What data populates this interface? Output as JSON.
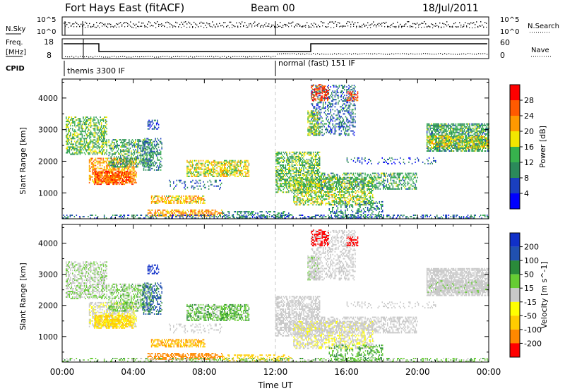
{
  "header": {
    "title": "Fort Hays East (fitACF)",
    "beam": "Beam 00",
    "date": "18/Jul/2011"
  },
  "noise_panel": {
    "left_label": "N.Sky",
    "right_label": "N.Search",
    "tick_top": "10^5",
    "tick_bottom": "10^0"
  },
  "freq_panel": {
    "left_label_1": "Freq.",
    "left_label_2": "[MHz]",
    "left_tick_top": "18",
    "left_tick_bottom": "8",
    "right_label": "Nave",
    "right_tick_top": "60",
    "right_tick_bottom": "0"
  },
  "cpid": {
    "label": "CPID",
    "modes": [
      {
        "name": "themis 3300 IF",
        "start_hour": 0
      },
      {
        "name": "normal (fast) 151 IF",
        "start_hour": 12
      }
    ]
  },
  "colors": {
    "power_scale": [
      "#0000ff",
      "#1a3fbf",
      "#2b8a5a",
      "#37b24d",
      "#f2e600",
      "#ff9900",
      "#ff5a00",
      "#ff0000"
    ],
    "velocity_scale": [
      "#1030c8",
      "#2050b0",
      "#2a8a3a",
      "#66cc33",
      "#c8c8c8",
      "#ffff00",
      "#ffcc00",
      "#ff8800",
      "#ff0000"
    ],
    "ground_scatter": "#c8c8c8"
  },
  "chart_data": [
    {
      "type": "heatmap",
      "name": "power",
      "ylabel": "Slant Range [km]",
      "ylim": [
        180,
        4600
      ],
      "xlim_hours": [
        0,
        24
      ],
      "yticks": [
        1000,
        2000,
        3000,
        4000
      ],
      "colorbar_label": "Power [dB]",
      "colorbar_ticks": [
        "4",
        "8",
        "12",
        "16",
        "20",
        "24",
        "28"
      ],
      "colorbar_range": [
        0,
        32
      ]
    },
    {
      "type": "heatmap",
      "name": "velocity",
      "xlabel": "Time UT",
      "ylabel": "Slant Range [km]",
      "ylim": [
        180,
        4600
      ],
      "xlim_hours": [
        0,
        24
      ],
      "yticks": [
        1000,
        2000,
        3000,
        4000
      ],
      "xtick_labels": [
        "00:00",
        "04:00",
        "08:00",
        "12:00",
        "16:00",
        "20:00",
        "00:00"
      ],
      "colorbar_label": "Velocity [m s^-1]",
      "colorbar_ticks": [
        "200",
        "100",
        "50",
        "15",
        "-15",
        "-50",
        "-100",
        "-200"
      ]
    }
  ],
  "regions": [
    {
      "h0": 0.2,
      "h1": 2.5,
      "r0": 2200,
      "r1": 3400,
      "p": 14,
      "v": 10,
      "d": 0.55
    },
    {
      "h0": 1.5,
      "h1": 4.2,
      "r0": 1300,
      "r1": 2100,
      "p": 22,
      "v": -10,
      "d": 0.6
    },
    {
      "h0": 1.8,
      "h1": 4.0,
      "r0": 1250,
      "r1": 1700,
      "p": 26,
      "v": -40,
      "d": 0.7
    },
    {
      "h0": 2.6,
      "h1": 5.0,
      "r0": 1800,
      "r1": 2700,
      "p": 12,
      "v": 20,
      "d": 0.5
    },
    {
      "h0": 4.5,
      "h1": 5.6,
      "r0": 1700,
      "r1": 2700,
      "p": 10,
      "v": 80,
      "d": 0.4
    },
    {
      "h0": 4.8,
      "h1": 5.4,
      "r0": 3000,
      "r1": 3300,
      "p": 6,
      "v": 250,
      "d": 0.6
    },
    {
      "h0": 5.0,
      "h1": 8.0,
      "r0": 650,
      "r1": 900,
      "p": 20,
      "v": -70,
      "d": 0.6
    },
    {
      "h0": 4.8,
      "h1": 9.0,
      "r0": 250,
      "r1": 450,
      "p": 22,
      "v": -90,
      "d": 0.55
    },
    {
      "h0": 7.0,
      "h1": 10.5,
      "r0": 1500,
      "r1": 2000,
      "p": 18,
      "v": 25,
      "d": 0.6
    },
    {
      "h0": 6.0,
      "h1": 9.0,
      "r0": 1100,
      "r1": 1400,
      "p": 8,
      "v": 0,
      "d": 0.2
    },
    {
      "h0": 9.0,
      "h1": 13.0,
      "r0": 200,
      "r1": 400,
      "p": 10,
      "v": -50,
      "d": 0.3
    },
    {
      "h0": 12.0,
      "h1": 14.5,
      "r0": 1000,
      "r1": 2300,
      "p": 14,
      "v": 0,
      "d": 0.6
    },
    {
      "h0": 13.0,
      "h1": 17.5,
      "r0": 600,
      "r1": 1500,
      "p": 16,
      "v": -10,
      "d": 0.5
    },
    {
      "h0": 14.5,
      "h1": 20.0,
      "r0": 1100,
      "r1": 1600,
      "p": 12,
      "v": 0,
      "d": 0.45
    },
    {
      "h0": 14.0,
      "h1": 16.5,
      "r0": 2800,
      "r1": 4400,
      "p": 8,
      "v": 0,
      "d": 0.35
    },
    {
      "h0": 13.8,
      "h1": 14.5,
      "r0": 2800,
      "r1": 3600,
      "p": 16,
      "v": 5,
      "d": 0.6
    },
    {
      "h0": 14.0,
      "h1": 15.0,
      "r0": 3900,
      "r1": 4400,
      "p": 28,
      "v": -250,
      "d": 0.5
    },
    {
      "h0": 16.0,
      "h1": 16.7,
      "r0": 3900,
      "r1": 4200,
      "p": 26,
      "v": -250,
      "d": 0.5
    },
    {
      "h0": 15.0,
      "h1": 18.0,
      "r0": 200,
      "r1": 700,
      "p": 10,
      "v": 30,
      "d": 0.35
    },
    {
      "h0": 20.5,
      "h1": 24.0,
      "r0": 2300,
      "r1": 3200,
      "p": 12,
      "v": 0,
      "d": 0.7
    },
    {
      "h0": 20.5,
      "h1": 24.0,
      "r0": 2400,
      "r1": 2800,
      "p": 18,
      "v": 5,
      "d": 0.5
    },
    {
      "h0": 0.0,
      "h1": 24.0,
      "r0": 180,
      "r1": 290,
      "p": 8,
      "v": 20,
      "d": 0.35
    },
    {
      "h0": 16.0,
      "h1": 21.0,
      "r0": 1900,
      "r1": 2100,
      "p": 6,
      "v": 0,
      "d": 0.2
    }
  ]
}
